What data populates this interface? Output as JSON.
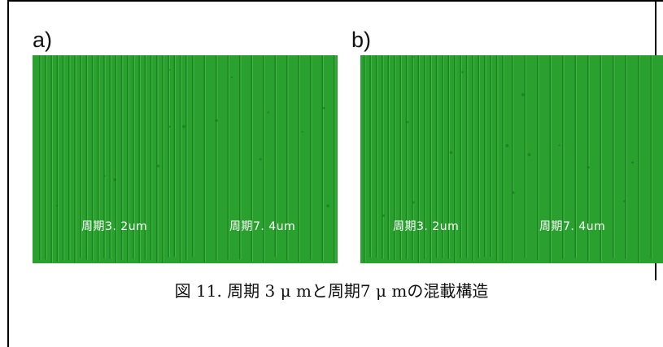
{
  "panels": [
    {
      "label": "a)",
      "left_text": "周期3. 2um",
      "right_text": "周期7. 4um"
    },
    {
      "label": "b)",
      "left_text": "周期3. 2um",
      "right_text": "周期7. 4um"
    }
  ],
  "figure_caption": "図 11.  周期 3 μ mと周期7 μ mの混載構造",
  "colors": {
    "micrograph_green": "#2aa12f",
    "ridge_dark": "#167a1c",
    "ridge_light": "#5cc85a"
  }
}
